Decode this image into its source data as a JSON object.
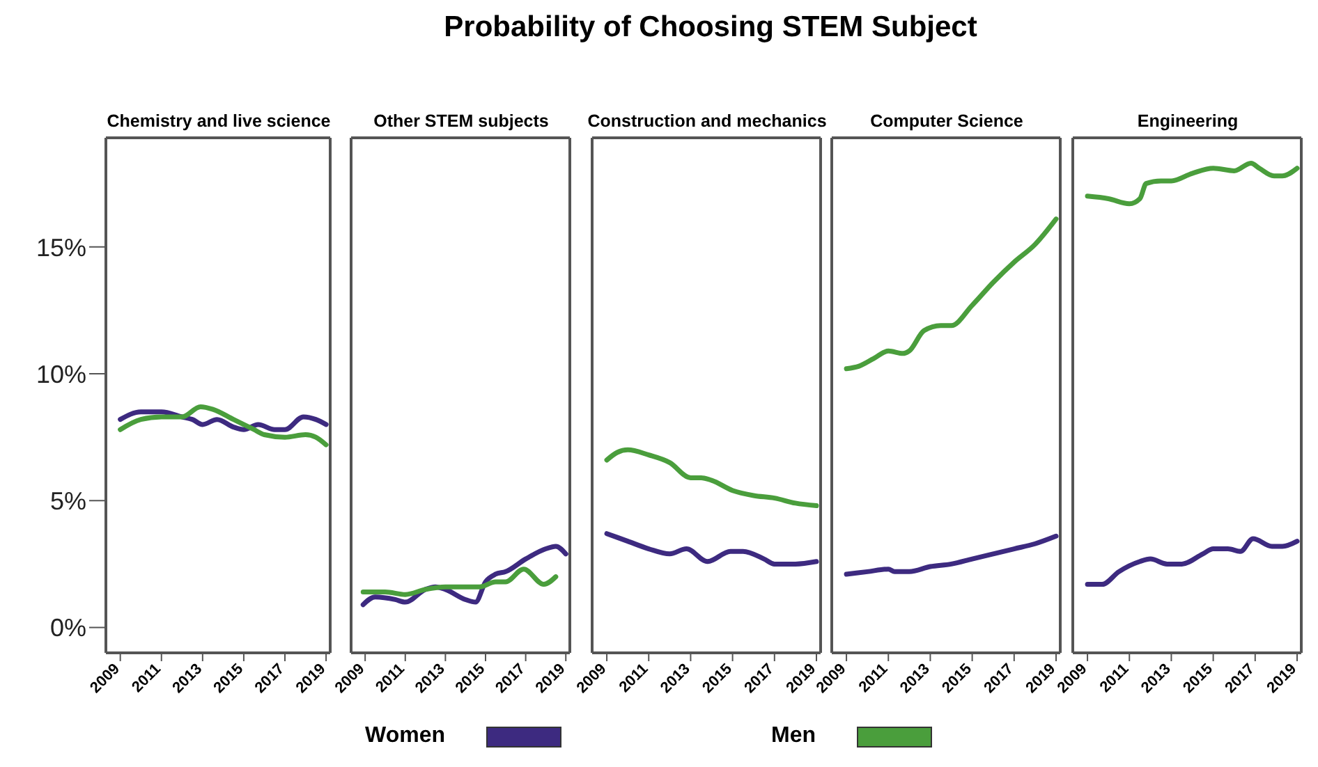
{
  "chart_data": [
    {
      "type": "line",
      "title": "Chemistry and live science",
      "annotations": [
        "Probability of Choosing STEM Subject"
      ],
      "legend": "bottom",
      "xlim": [
        2008.3,
        2019.2
      ],
      "xticks": [
        2009,
        2011,
        2013,
        2015,
        2017,
        2019
      ],
      "ylim": [
        -1,
        19.3
      ],
      "yticks": [
        {
          "value": 0,
          "label": "0%"
        },
        {
          "value": 5,
          "label": "5%"
        },
        {
          "value": 10,
          "label": "10%"
        },
        {
          "value": 15,
          "label": "15%"
        }
      ],
      "series": [
        {
          "name": "Women",
          "color": "#3d2a80",
          "x": [
            2009,
            2010,
            2011,
            2012,
            2012.5,
            2013,
            2013.7,
            2014.5,
            2015,
            2015.7,
            2016.5,
            2017,
            2017.9,
            2018.5,
            2019
          ],
          "values": [
            8.2,
            8.5,
            8.5,
            8.3,
            8.2,
            8.0,
            8.2,
            7.9,
            7.8,
            8.0,
            7.8,
            7.8,
            8.3,
            8.2,
            8.0
          ]
        },
        {
          "name": "Men",
          "color": "#4a9e3c",
          "x": [
            2009,
            2010,
            2011,
            2012,
            2012.9,
            2013.5,
            2014.5,
            2015.5,
            2016,
            2017,
            2018,
            2018.5,
            2019
          ],
          "values": [
            7.8,
            8.2,
            8.3,
            8.3,
            8.7,
            8.6,
            8.2,
            7.8,
            7.6,
            7.5,
            7.6,
            7.5,
            7.2
          ]
        }
      ]
    },
    {
      "type": "line",
      "title": "Other STEM subjects",
      "tick_labels": "x",
      "xlim": [
        2008.3,
        2019.2
      ],
      "xticks": [
        2009,
        2011,
        2013,
        2015,
        2017,
        2019
      ],
      "ylim": [
        -1,
        19.3
      ],
      "series": [
        {
          "color": "#3d2a80",
          "x": [
            2008.9,
            2009.5,
            2010.5,
            2011,
            2012,
            2012.5,
            2013,
            2014,
            2014.5,
            2015,
            2015.5,
            2016,
            2017,
            2018,
            2018.5,
            2019
          ],
          "values": [
            0.9,
            1.2,
            1.1,
            1.0,
            1.5,
            1.6,
            1.5,
            1.1,
            1.0,
            1.8,
            2.1,
            2.2,
            2.7,
            3.1,
            3.2,
            2.9
          ]
        },
        {
          "color": "#4a9e3c",
          "x": [
            2008.9,
            2010,
            2011,
            2012,
            2013,
            2014,
            2014.7,
            2015.5,
            2016,
            2016.9,
            2017.9,
            2018.5
          ],
          "values": [
            1.4,
            1.4,
            1.3,
            1.5,
            1.6,
            1.6,
            1.6,
            1.8,
            1.8,
            2.3,
            1.7,
            2.0
          ]
        }
      ]
    },
    {
      "type": "line",
      "title": "Construction and mechanics",
      "tick_labels": "x",
      "xlim": [
        2008.3,
        2019.2
      ],
      "xticks": [
        2009,
        2011,
        2013,
        2015,
        2017,
        2019
      ],
      "ylim": [
        -1,
        19.3
      ],
      "series": [
        {
          "color": "#3d2a80",
          "x": [
            2009,
            2010,
            2011,
            2012,
            2012.8,
            2013.8,
            2014.9,
            2015.5,
            2016.5,
            2017,
            2018,
            2019
          ],
          "values": [
            3.7,
            3.4,
            3.1,
            2.9,
            3.1,
            2.6,
            3.0,
            3.0,
            2.7,
            2.5,
            2.5,
            2.6
          ]
        },
        {
          "color": "#4a9e3c",
          "x": [
            2009,
            2009.5,
            2010,
            2011,
            2012,
            2013,
            2013.5,
            2014,
            2015,
            2016,
            2017,
            2018,
            2019
          ],
          "values": [
            6.6,
            6.9,
            7.0,
            6.8,
            6.5,
            5.9,
            5.9,
            5.8,
            5.4,
            5.2,
            5.1,
            4.9,
            4.8
          ]
        }
      ]
    },
    {
      "type": "line",
      "title": "Computer Science",
      "tick_labels": "x",
      "xlim": [
        2008.3,
        2019.2
      ],
      "xticks": [
        2009,
        2011,
        2013,
        2015,
        2017,
        2019
      ],
      "ylim": [
        -1,
        19.3
      ],
      "series": [
        {
          "color": "#3d2a80",
          "x": [
            2009,
            2010,
            2011,
            2011.3,
            2012,
            2013,
            2014,
            2015,
            2016,
            2017,
            2018,
            2019
          ],
          "values": [
            2.1,
            2.2,
            2.3,
            2.2,
            2.2,
            2.4,
            2.5,
            2.7,
            2.9,
            3.1,
            3.3,
            3.6
          ]
        },
        {
          "color": "#4a9e3c",
          "x": [
            2009,
            2009.6,
            2010.3,
            2011,
            2011.7,
            2012,
            2012.7,
            2013.5,
            2014,
            2015,
            2016,
            2017,
            2018,
            2019
          ],
          "values": [
            10.2,
            10.3,
            10.6,
            10.9,
            10.8,
            10.9,
            11.7,
            11.9,
            11.9,
            12.7,
            13.6,
            14.4,
            15.1,
            16.1
          ]
        }
      ]
    },
    {
      "type": "line",
      "title": "Engineering",
      "tick_labels": "x",
      "xlim": [
        2008.3,
        2019.2
      ],
      "xticks": [
        2009,
        2011,
        2013,
        2015,
        2017,
        2019
      ],
      "ylim": [
        -1,
        19.3
      ],
      "series": [
        {
          "color": "#3d2a80",
          "x": [
            2009,
            2009.7,
            2010.5,
            2011.5,
            2012,
            2012.8,
            2013.5,
            2014.5,
            2015,
            2015.7,
            2016.3,
            2016.9,
            2017.8,
            2018.3,
            2019
          ],
          "values": [
            1.7,
            1.7,
            2.2,
            2.6,
            2.7,
            2.5,
            2.5,
            2.9,
            3.1,
            3.1,
            3.0,
            3.5,
            3.2,
            3.2,
            3.4
          ]
        },
        {
          "color": "#4a9e3c",
          "x": [
            2009,
            2010,
            2011,
            2011.5,
            2011.8,
            2012.5,
            2013,
            2014,
            2015,
            2016,
            2016.8,
            2017.2,
            2017.9,
            2018.3,
            2019
          ],
          "values": [
            17.0,
            16.9,
            16.7,
            16.9,
            17.5,
            17.6,
            17.6,
            17.9,
            18.1,
            18.0,
            18.3,
            18.1,
            17.8,
            17.8,
            18.1
          ]
        }
      ]
    }
  ]
}
